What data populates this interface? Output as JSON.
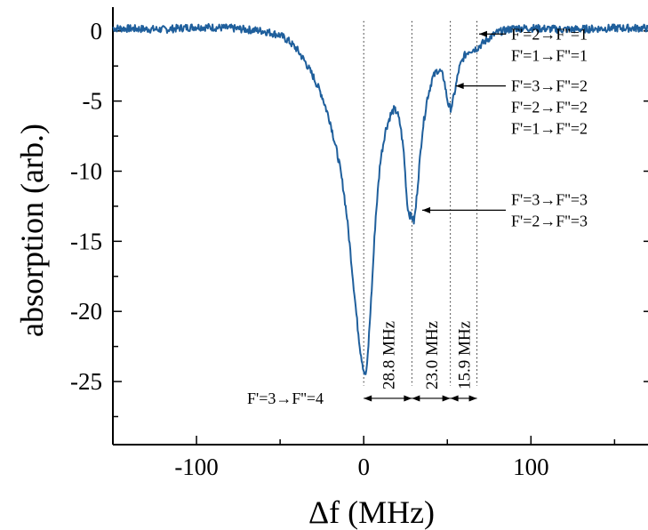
{
  "colors": {
    "trace": "#1f5f9c",
    "axis": "#000000"
  },
  "chart_data": {
    "type": "line",
    "xlabel": "Δf (MHz)",
    "ylabel": "absorption (arb.)",
    "xlim": [
      -150,
      170
    ],
    "ylim": [
      -29.5,
      1.7
    ],
    "x_ticks": [
      -100,
      0,
      100
    ],
    "x_tick_labels": [
      "-100",
      "0",
      "100"
    ],
    "y_ticks": [
      0,
      -5,
      -10,
      -15,
      -20,
      -25
    ],
    "y_tick_labels": [
      "0",
      "-5",
      "-10",
      "-15",
      "-20",
      "-25"
    ],
    "grid": false,
    "legend": null,
    "series": [
      {
        "x": [
          -150,
          -120,
          -100,
          -80,
          -60,
          -50,
          -45,
          -40,
          -35,
          -30,
          -25,
          -20,
          -15,
          -12,
          -10,
          -8,
          -6,
          -4,
          -2,
          0,
          1,
          2,
          3,
          5,
          7,
          10,
          13,
          16,
          18,
          20,
          22,
          24,
          25,
          26,
          27,
          28,
          29,
          30,
          31,
          33,
          35,
          38,
          41,
          44,
          46,
          48,
          49,
          50,
          51,
          52,
          53,
          55,
          57,
          60,
          63,
          66,
          68,
          70,
          75,
          80,
          90,
          100,
          120,
          150,
          170
        ],
        "y": [
          0.2,
          0.1,
          0.3,
          0.2,
          0.0,
          -0.3,
          -0.7,
          -1.3,
          -2.2,
          -3.3,
          -4.6,
          -6.5,
          -9.2,
          -11.4,
          -13.3,
          -15.7,
          -18.2,
          -20.7,
          -22.8,
          -24.2,
          -24.6,
          -23.9,
          -22.0,
          -18.0,
          -13.5,
          -9.2,
          -7.1,
          -6.0,
          -5.6,
          -5.8,
          -6.8,
          -8.7,
          -10.5,
          -12.3,
          -13.0,
          -13.2,
          -13.3,
          -13.6,
          -12.8,
          -10.0,
          -7.2,
          -4.8,
          -3.4,
          -2.8,
          -2.9,
          -3.4,
          -4.2,
          -4.9,
          -5.4,
          -5.5,
          -5.2,
          -4.0,
          -2.7,
          -1.8,
          -1.4,
          -1.3,
          -1.2,
          -1.0,
          -0.5,
          -0.1,
          0.2,
          0.2,
          0.1,
          0.2,
          0.2
        ]
      }
    ],
    "dotted_markers_x": [
      0,
      28.8,
      51.8,
      67.7
    ],
    "spacings": [
      {
        "from": 0,
        "to": 28.8,
        "label": "28.8 MHz"
      },
      {
        "from": 28.8,
        "to": 51.8,
        "label": "23.0 MHz"
      },
      {
        "from": 51.8,
        "to": 67.7,
        "label": "15.9 MHz"
      }
    ],
    "annotations": [
      {
        "lines": [
          "F'=3→F''=4"
        ],
        "target": [
          0,
          -25.5
        ]
      },
      {
        "lines": [
          "F'=3→F''=3",
          "F'=2→F''=3"
        ],
        "target": [
          35,
          -13.5
        ]
      },
      {
        "lines": [
          "F'=3→F''=2",
          "F'=2→F''=2",
          "F'=1→F''=2"
        ],
        "target": [
          55,
          -5.0
        ]
      },
      {
        "lines": [
          "F'=2→F''=1",
          "F'=1→F''=1"
        ],
        "target": [
          69,
          -1.0
        ]
      }
    ]
  }
}
